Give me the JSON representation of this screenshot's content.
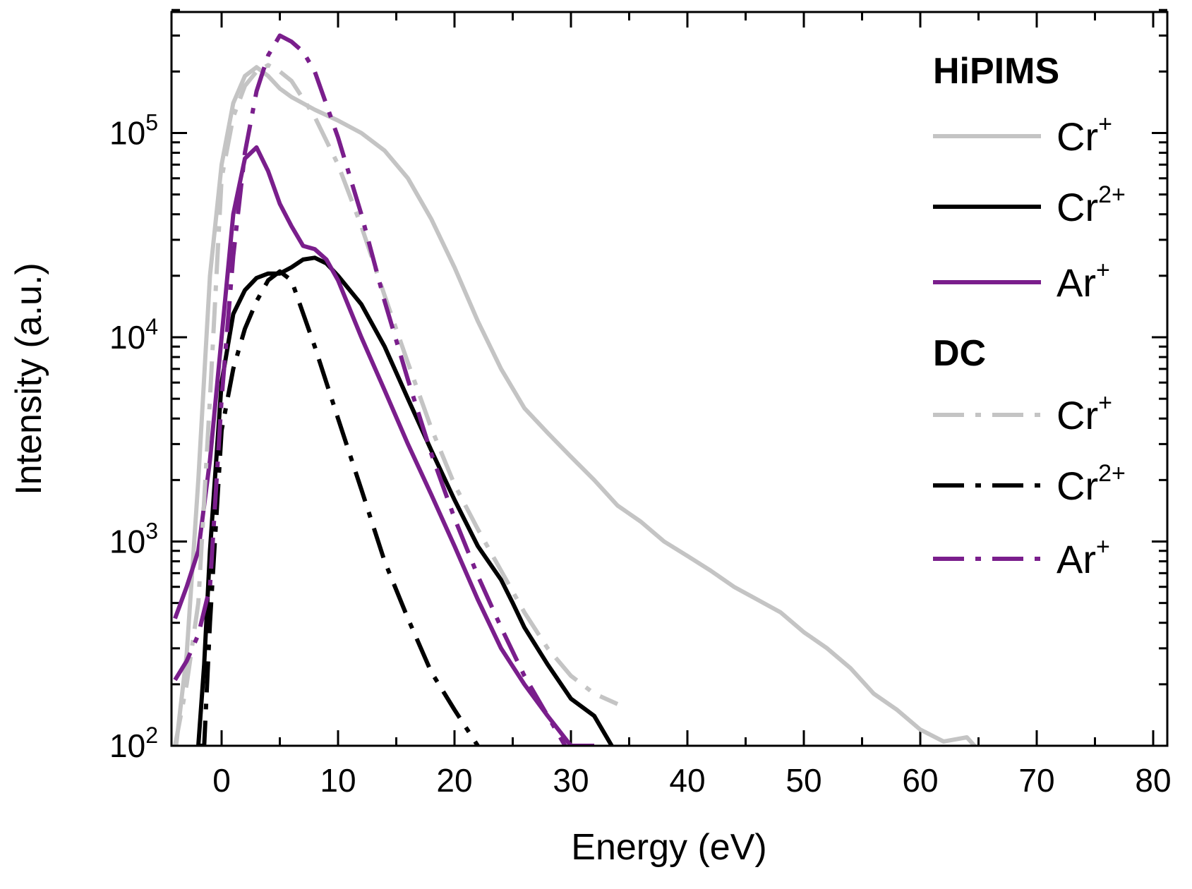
{
  "chart_data": {
    "type": "line",
    "title": "",
    "xlabel": "Energy (eV)",
    "ylabel": "Intensity (a.u.)",
    "xlim": [
      -4,
      80
    ],
    "ylim": [
      100,
      400000
    ],
    "yscale": "log",
    "x_ticks": [
      0,
      10,
      20,
      30,
      40,
      50,
      60,
      70,
      80
    ],
    "y_ticks": [
      {
        "value": 100,
        "base": "10",
        "exp": "2"
      },
      {
        "value": 1000,
        "base": "10",
        "exp": "3"
      },
      {
        "value": 10000,
        "base": "10",
        "exp": "4"
      },
      {
        "value": 100000,
        "base": "10",
        "exp": "5"
      }
    ],
    "legend": {
      "placement": "top-right",
      "groups": [
        {
          "title": "HiPIMS",
          "entries": [
            {
              "series": "hipims-cr1",
              "base": "Cr",
              "sup": "+"
            },
            {
              "series": "hipims-cr2",
              "base": "Cr",
              "sup": "2+"
            },
            {
              "series": "hipims-ar1",
              "base": "Ar",
              "sup": "+"
            }
          ]
        },
        {
          "title": "DC",
          "entries": [
            {
              "series": "dc-cr1",
              "base": "Cr",
              "sup": "+"
            },
            {
              "series": "dc-cr2",
              "base": "Cr",
              "sup": "2+"
            },
            {
              "series": "dc-ar1",
              "base": "Ar",
              "sup": "+"
            }
          ]
        }
      ]
    },
    "series": [
      {
        "id": "hipims-cr1",
        "name": "HiPIMS Cr+",
        "color": "#c4c4c4",
        "style": "solid",
        "x": [
          -4,
          -3,
          -2,
          -1,
          0,
          1,
          2,
          3,
          4,
          5,
          6,
          8,
          10,
          12,
          14,
          16,
          18,
          20,
          22,
          24,
          26,
          28,
          30,
          32,
          34,
          36,
          38,
          40,
          42,
          44,
          46,
          48,
          50,
          52,
          54,
          56,
          58,
          60,
          62,
          64,
          65
        ],
        "y": [
          90,
          280,
          2000,
          20000,
          70000,
          140000,
          190000,
          210000,
          190000,
          165000,
          150000,
          130000,
          115000,
          100000,
          82000,
          60000,
          38000,
          22000,
          12000,
          7000,
          4500,
          3400,
          2600,
          2000,
          1500,
          1250,
          1000,
          850,
          720,
          600,
          520,
          450,
          360,
          300,
          240,
          180,
          150,
          120,
          105,
          110,
          95
        ]
      },
      {
        "id": "hipims-cr2",
        "name": "HiPIMS Cr2+",
        "color": "#000000",
        "style": "solid",
        "x": [
          -2,
          -1.5,
          -1,
          0,
          1,
          2,
          3,
          4,
          5,
          6,
          7,
          8,
          9,
          10,
          12,
          14,
          16,
          18,
          20,
          22,
          24,
          25,
          26,
          28,
          30,
          32,
          33.5
        ],
        "y": [
          100,
          250,
          900,
          6000,
          13000,
          17000,
          19500,
          20500,
          20500,
          22000,
          24000,
          24500,
          23000,
          20000,
          14500,
          9000,
          5000,
          2800,
          1600,
          950,
          650,
          500,
          380,
          250,
          170,
          140,
          100
        ]
      },
      {
        "id": "hipims-ar1",
        "name": "HiPIMS Ar+",
        "color": "#7a1e8c",
        "style": "solid",
        "x": [
          -4,
          -3,
          -2,
          -1,
          0,
          1,
          2,
          3,
          4,
          5,
          6,
          7,
          8,
          9,
          10,
          12,
          14,
          16,
          18,
          20,
          22,
          24,
          26,
          28,
          30,
          32
        ],
        "y": [
          420,
          600,
          900,
          2500,
          10000,
          40000,
          75000,
          85000,
          65000,
          45000,
          35000,
          28000,
          27000,
          24000,
          19000,
          10000,
          5500,
          3000,
          1700,
          950,
          520,
          300,
          200,
          140,
          100,
          100
        ]
      },
      {
        "id": "dc-cr1",
        "name": "DC Cr+",
        "color": "#c4c4c4",
        "style": "dashdot",
        "x": [
          -4,
          -3,
          -2,
          -1,
          0,
          1,
          2,
          3,
          4,
          5,
          6,
          8,
          10,
          12,
          14,
          16,
          18,
          20,
          22,
          24,
          26,
          28,
          30,
          32,
          34
        ],
        "y": [
          100,
          200,
          500,
          5000,
          60000,
          120000,
          170000,
          200000,
          215000,
          200000,
          180000,
          120000,
          70000,
          35000,
          16000,
          7500,
          3600,
          1900,
          1150,
          720,
          450,
          300,
          220,
          180,
          160
        ]
      },
      {
        "id": "dc-cr2",
        "name": "DC Cr2+",
        "color": "#000000",
        "style": "dashdot",
        "x": [
          -2,
          -1.5,
          -1,
          0,
          1,
          2,
          3,
          4,
          5,
          6,
          8,
          10,
          12,
          14,
          16,
          18,
          20,
          22
        ],
        "y": [
          100,
          100,
          400,
          3500,
          7000,
          11000,
          15000,
          19000,
          21000,
          19000,
          9000,
          4000,
          1800,
          800,
          420,
          230,
          150,
          100
        ]
      },
      {
        "id": "dc-ar1",
        "name": "DC Ar+",
        "color": "#7a1e8c",
        "style": "dashdot",
        "x": [
          -4,
          -3,
          -2,
          -1,
          0,
          1,
          2,
          3,
          4,
          5,
          6,
          7,
          8,
          10,
          12,
          14,
          16,
          18,
          20,
          22,
          24,
          26,
          28,
          29.5
        ],
        "y": [
          210,
          260,
          350,
          600,
          5000,
          25000,
          80000,
          160000,
          240000,
          300000,
          280000,
          250000,
          200000,
          95000,
          40000,
          15000,
          6200,
          2700,
          1300,
          680,
          380,
          220,
          140,
          100
        ]
      }
    ]
  }
}
